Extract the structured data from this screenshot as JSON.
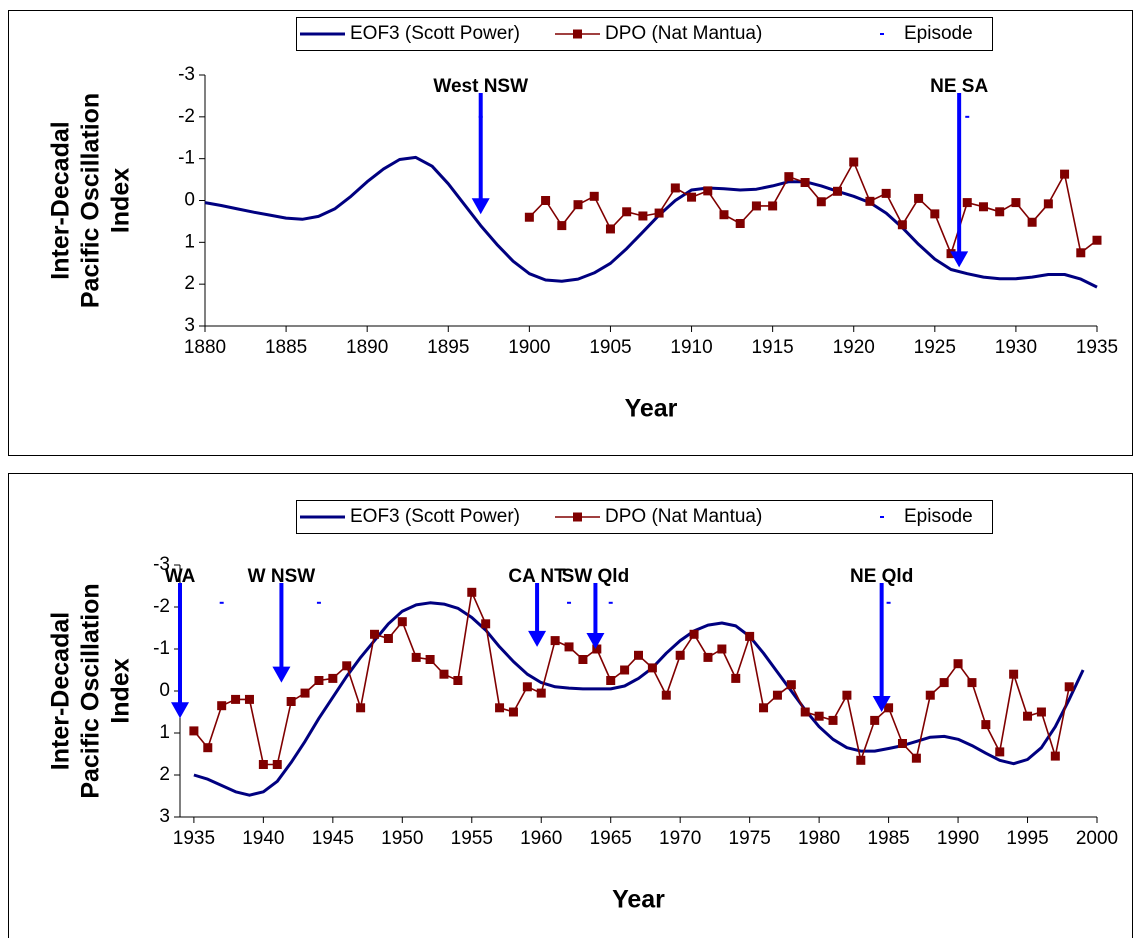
{
  "chart_data": [
    {
      "type": "line",
      "legend": "top",
      "xlabel": "Year",
      "ylabel": [
        "Inter-Decadal",
        "Pacific Oscillation",
        "Index"
      ],
      "xlim": [
        1880,
        1935
      ],
      "xticks": [
        1880,
        1885,
        1890,
        1895,
        1900,
        1905,
        1910,
        1915,
        1920,
        1925,
        1930,
        1935
      ],
      "ylim": [
        3,
        -3
      ],
      "yticks": [
        -3,
        -2,
        -1,
        0,
        1,
        2,
        3
      ],
      "series": [
        {
          "name": "EOF3 (Scott Power)",
          "color": "#000080",
          "marker": "none",
          "line": true,
          "x": [
            1880,
            1881,
            1882,
            1883,
            1884,
            1885,
            1886,
            1887,
            1888,
            1889,
            1890,
            1891,
            1892,
            1893,
            1894,
            1895,
            1896,
            1897,
            1898,
            1899,
            1900,
            1901,
            1902,
            1903,
            1904,
            1905,
            1906,
            1907,
            1908,
            1909,
            1910,
            1911,
            1912,
            1913,
            1914,
            1915,
            1916,
            1917,
            1918,
            1919,
            1920,
            1921,
            1922,
            1923,
            1924,
            1925,
            1926,
            1927,
            1928,
            1929,
            1930,
            1931,
            1932,
            1933,
            1934,
            1935
          ],
          "values": [
            0.05,
            0.12,
            0.2,
            0.28,
            0.35,
            0.42,
            0.45,
            0.38,
            0.2,
            -0.1,
            -0.45,
            -0.75,
            -0.98,
            -1.03,
            -0.82,
            -0.4,
            0.1,
            0.6,
            1.05,
            1.45,
            1.75,
            1.9,
            1.93,
            1.88,
            1.73,
            1.5,
            1.15,
            0.75,
            0.35,
            0,
            -0.25,
            -0.3,
            -0.28,
            -0.25,
            -0.27,
            -0.35,
            -0.45,
            -0.45,
            -0.35,
            -0.22,
            -0.1,
            0.05,
            0.3,
            0.65,
            1.05,
            1.4,
            1.65,
            1.75,
            1.83,
            1.87,
            1.87,
            1.83,
            1.77,
            1.77,
            1.88,
            2.07
          ]
        },
        {
          "name": "DPO (Nat Mantua)",
          "color": "#800000",
          "marker": "square",
          "line": true,
          "x": [
            1900,
            1901,
            1902,
            1903,
            1904,
            1905,
            1906,
            1907,
            1908,
            1909,
            1910,
            1911,
            1912,
            1913,
            1914,
            1915,
            1916,
            1917,
            1918,
            1919,
            1920,
            1921,
            1922,
            1923,
            1924,
            1925,
            1926,
            1927,
            1928,
            1929,
            1930,
            1931,
            1932,
            1933,
            1934,
            1935
          ],
          "values": [
            0.4,
            0,
            0.6,
            0.1,
            -0.1,
            0.68,
            0.27,
            0.37,
            0.3,
            -0.3,
            -0.08,
            -0.23,
            0.34,
            0.55,
            0.13,
            0.13,
            -0.57,
            -0.43,
            0.03,
            -0.22,
            -0.92,
            0.02,
            -0.17,
            0.58,
            -0.05,
            0.32,
            1.27,
            0.05,
            0.15,
            0.27,
            0.05,
            0.52,
            0.08,
            -0.63,
            1.25,
            0.95
          ]
        },
        {
          "name": "Episode",
          "color": "#0000ff",
          "marker": "dash",
          "line": false,
          "x": [
            1897,
            1927
          ],
          "values": [
            -2,
            -2
          ]
        }
      ],
      "annotations": [
        {
          "text": "West NSW",
          "x": 1897,
          "y": 0.33
        },
        {
          "text": "NE SA",
          "x": 1926.5,
          "y": 1.6
        }
      ]
    },
    {
      "type": "line",
      "legend": "top",
      "xlabel": "Year",
      "ylabel": [
        "Inter-Decadal",
        "Pacific Oscillation",
        "Index"
      ],
      "xlim": [
        1934,
        2000
      ],
      "xticks": [
        1935,
        1940,
        1945,
        1950,
        1955,
        1960,
        1965,
        1970,
        1975,
        1980,
        1985,
        1990,
        1995,
        2000
      ],
      "ylim": [
        3,
        -3
      ],
      "yticks": [
        -3,
        -2,
        -1,
        0,
        1,
        2,
        3
      ],
      "series": [
        {
          "name": "EOF3 (Scott Power)",
          "color": "#000080",
          "marker": "none",
          "line": true,
          "x": [
            1935,
            1936,
            1937,
            1938,
            1939,
            1940,
            1941,
            1942,
            1943,
            1944,
            1945,
            1946,
            1947,
            1948,
            1949,
            1950,
            1951,
            1952,
            1953,
            1954,
            1955,
            1956,
            1957,
            1958,
            1959,
            1960,
            1961,
            1962,
            1963,
            1964,
            1965,
            1966,
            1967,
            1968,
            1969,
            1970,
            1971,
            1972,
            1973,
            1974,
            1975,
            1976,
            1977,
            1978,
            1979,
            1980,
            1981,
            1982,
            1983,
            1984,
            1985,
            1986,
            1987,
            1988,
            1989,
            1990,
            1991,
            1992,
            1993,
            1994,
            1995,
            1996,
            1997,
            1998,
            1999
          ],
          "values": [
            2.0,
            2.1,
            2.25,
            2.4,
            2.48,
            2.4,
            2.15,
            1.7,
            1.2,
            0.65,
            0.15,
            -0.35,
            -0.8,
            -1.2,
            -1.6,
            -1.9,
            -2.05,
            -2.1,
            -2.07,
            -1.97,
            -1.75,
            -1.45,
            -1.05,
            -0.7,
            -0.4,
            -0.2,
            -0.1,
            -0.07,
            -0.05,
            -0.05,
            -0.05,
            -0.12,
            -0.3,
            -0.55,
            -0.9,
            -1.2,
            -1.43,
            -1.57,
            -1.62,
            -1.55,
            -1.3,
            -0.9,
            -0.45,
            0,
            0.45,
            0.85,
            1.15,
            1.35,
            1.43,
            1.43,
            1.37,
            1.3,
            1.2,
            1.1,
            1.08,
            1.15,
            1.3,
            1.48,
            1.65,
            1.73,
            1.63,
            1.35,
            0.85,
            0.2,
            -0.5
          ]
        },
        {
          "name": "DPO (Nat Mantua)",
          "color": "#800000",
          "marker": "square",
          "line": true,
          "x": [
            1935,
            1936,
            1937,
            1938,
            1939,
            1940,
            1941,
            1942,
            1943,
            1944,
            1945,
            1946,
            1947,
            1948,
            1949,
            1950,
            1951,
            1952,
            1953,
            1954,
            1955,
            1956,
            1957,
            1958,
            1959,
            1960,
            1961,
            1962,
            1963,
            1964,
            1965,
            1966,
            1967,
            1968,
            1969,
            1970,
            1971,
            1972,
            1973,
            1974,
            1975,
            1976,
            1977,
            1978,
            1979,
            1980,
            1981,
            1982,
            1983,
            1984,
            1985,
            1986,
            1987,
            1988,
            1989,
            1990,
            1991,
            1992,
            1993,
            1994,
            1995,
            1996,
            1997,
            1998
          ],
          "values": [
            0.95,
            1.35,
            0.35,
            0.2,
            0.2,
            1.75,
            1.75,
            0.25,
            0.05,
            -0.25,
            -0.3,
            -0.6,
            0.4,
            -1.35,
            -1.25,
            -1.65,
            -0.8,
            -0.75,
            -0.4,
            -0.25,
            -2.35,
            -1.6,
            0.4,
            0.5,
            -0.1,
            0.05,
            -1.2,
            -1.05,
            -0.75,
            -1.0,
            -0.25,
            -0.5,
            -0.85,
            -0.55,
            0.1,
            -0.85,
            -1.35,
            -0.8,
            -1.0,
            -0.3,
            -1.3,
            0.4,
            0.1,
            -0.15,
            0.5,
            0.6,
            0.7,
            0.1,
            1.65,
            0.7,
            0.4,
            1.25,
            1.6,
            0.1,
            -0.2,
            -0.65,
            -0.2,
            0.8,
            1.45,
            -0.4,
            0.6,
            0.5,
            1.55,
            -0.1
          ]
        },
        {
          "name": "Episode",
          "color": "#0000ff",
          "marker": "dash",
          "line": false,
          "x": [
            1937,
            1944,
            1962,
            1965,
            1985
          ],
          "values": [
            -2.1,
            -2.1,
            -2.1,
            -2.1,
            -2.1
          ]
        }
      ],
      "annotations": [
        {
          "text": "WA",
          "x": 1934,
          "y": 0.65
        },
        {
          "text": "W NSW",
          "x": 1941.3,
          "y": -0.2
        },
        {
          "text": "CA NT",
          "x": 1959.7,
          "y": -1.05
        },
        {
          "text": "SW Qld",
          "x": 1963.9,
          "y": -1.0
        },
        {
          "text": "NE Qld",
          "x": 1984.5,
          "y": 0.5
        }
      ]
    }
  ]
}
